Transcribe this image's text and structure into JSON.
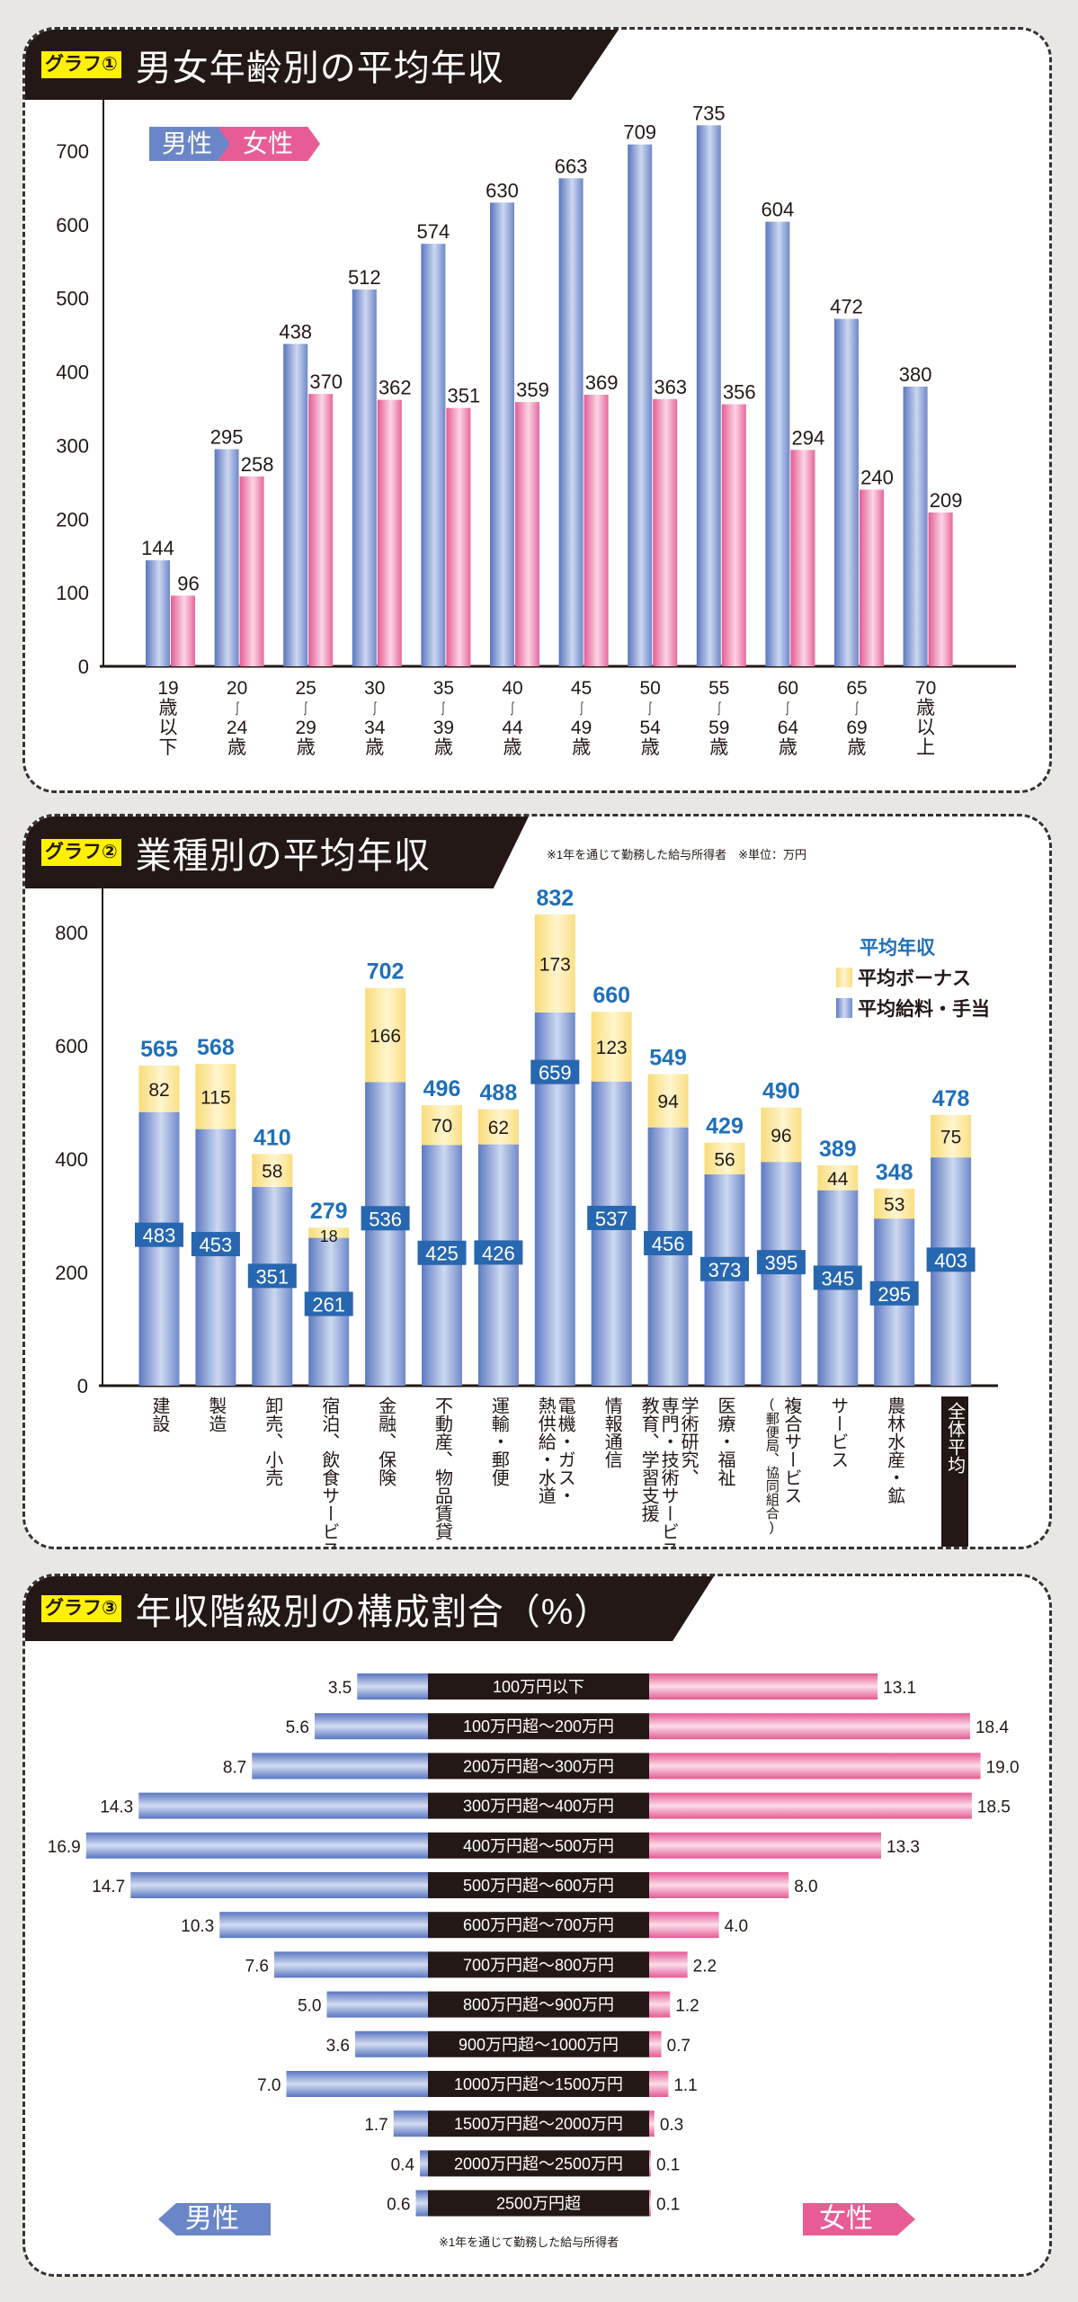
{
  "colors": {
    "male": "#6b86c8",
    "female": "#e85c95",
    "bonus": "#fbe48c",
    "salary": "#6b86c8",
    "value_blue": "#1f6fb8",
    "title_bg": "#231815",
    "badge": "#fff100"
  },
  "chart_data": [
    {
      "type": "bar",
      "badge": "グラフ①",
      "title": "男女年齢別の平均年収",
      "xlabel": "",
      "ylabel": "",
      "ylim": [
        0,
        750
      ],
      "yticks": [
        "0",
        "100",
        "200",
        "300",
        "400",
        "500",
        "600",
        "700"
      ],
      "legend": {
        "male": "男性",
        "female": "女性",
        "placement": "top-left"
      },
      "categories": [
        "19歳以下",
        "20～24歳",
        "25～29歳",
        "30～34歳",
        "35～39歳",
        "40～44歳",
        "45～49歳",
        "50～54歳",
        "55～59歳",
        "60～64歳",
        "65～69歳",
        "70歳以上"
      ],
      "category_lines": [
        [
          "19",
          "歳",
          "以",
          "下"
        ],
        [
          "20",
          "～",
          "24",
          "歳"
        ],
        [
          "25",
          "～",
          "29",
          "歳"
        ],
        [
          "30",
          "～",
          "34",
          "歳"
        ],
        [
          "35",
          "～",
          "39",
          "歳"
        ],
        [
          "40",
          "～",
          "44",
          "歳"
        ],
        [
          "45",
          "～",
          "49",
          "歳"
        ],
        [
          "50",
          "～",
          "54",
          "歳"
        ],
        [
          "55",
          "～",
          "59",
          "歳"
        ],
        [
          "60",
          "～",
          "64",
          "歳"
        ],
        [
          "65",
          "～",
          "69",
          "歳"
        ],
        [
          "70",
          "歳",
          "以",
          "上"
        ]
      ],
      "series": [
        {
          "name": "男性",
          "values": [
            144,
            295,
            438,
            512,
            574,
            630,
            663,
            709,
            735,
            604,
            472,
            380
          ]
        },
        {
          "name": "女性",
          "values": [
            96,
            258,
            370,
            362,
            351,
            359,
            369,
            363,
            356,
            294,
            240,
            209
          ]
        }
      ]
    },
    {
      "type": "bar",
      "stacked": true,
      "badge": "グラフ②",
      "title": "業種別の平均年収",
      "note": "※1年を通じて勤務した給与所得者　※単位：万円",
      "ylim": [
        0,
        850
      ],
      "yticks": [
        "0",
        "200",
        "400",
        "600",
        "800"
      ],
      "legend": {
        "title": "平均年収",
        "bonus": "平均ボーナス",
        "salary": "平均給料・手当",
        "placement": "top-right"
      },
      "categories": [
        "建設",
        "製造",
        "卸売、小売",
        "宿泊、飲食サービス",
        "金融、保険",
        "不動産、物品賃貸",
        "運輸・郵便",
        "電機・ガス・熱供給・水道",
        "情報通信",
        "学術研究、専門・技術サービス、教育、学習支援",
        "医療・福祉",
        "複合サービス（郵便局、協同組合）",
        "サービス",
        "農林水産・鉱",
        "全体平均"
      ],
      "category_columns": [
        [
          "建設"
        ],
        [
          "製造"
        ],
        [
          "卸売、小売"
        ],
        [
          "宿泊、飲食サービス"
        ],
        [
          "金融、保険"
        ],
        [
          "不動産、物品賃貸"
        ],
        [
          "運輸・郵便"
        ],
        [
          "電機・ガス・",
          "熱供給・水道"
        ],
        [
          "情報通信"
        ],
        [
          "学術研究、",
          "専門・技術サービス、",
          "教育、学習支援"
        ],
        [
          "医療・福祉"
        ],
        [
          "複合サービス",
          "(郵便局、協同組合)"
        ],
        [
          "サービス"
        ],
        [
          "農林水産・鉱"
        ],
        [
          "全体平均"
        ]
      ],
      "series": [
        {
          "name": "平均給料・手当",
          "values": [
            483,
            453,
            351,
            261,
            536,
            425,
            426,
            659,
            537,
            456,
            373,
            395,
            345,
            295,
            403
          ]
        },
        {
          "name": "平均ボーナス",
          "values": [
            82,
            115,
            58,
            18,
            166,
            70,
            62,
            173,
            123,
            94,
            56,
            96,
            44,
            53,
            75
          ]
        }
      ],
      "totals": [
        565,
        568,
        410,
        279,
        702,
        496,
        488,
        832,
        660,
        549,
        429,
        490,
        389,
        348,
        478
      ]
    },
    {
      "type": "bar",
      "orientation": "horizontal-butterfly",
      "badge": "グラフ③",
      "title": "年収階級別の構成割合（%）",
      "note": "※1年を通じて勤務した給与所得者",
      "legend": {
        "male": "男性",
        "female": "女性",
        "placement": "bottom"
      },
      "categories": [
        "100万円以下",
        "100万円超～200万円",
        "200万円超～300万円",
        "300万円超～400万円",
        "400万円超～500万円",
        "500万円超～600万円",
        "600万円超～700万円",
        "700万円超～800万円",
        "800万円超～900万円",
        "900万円超～1000万円",
        "1000万円超～1500万円",
        "1500万円超～2000万円",
        "2000万円超～2500万円",
        "2500万円超"
      ],
      "series": [
        {
          "name": "男性",
          "values": [
            3.5,
            5.6,
            8.7,
            14.3,
            16.9,
            14.7,
            10.3,
            7.6,
            5.0,
            3.6,
            7.0,
            1.7,
            0.4,
            0.6
          ],
          "labels": [
            "3.5",
            "5.6",
            "8.7",
            "14.3",
            "16.9",
            "14.7",
            "10.3",
            "7.6",
            "5.0",
            "3.6",
            "7.0",
            "1.7",
            "0.4",
            "0.6"
          ]
        },
        {
          "name": "女性",
          "values": [
            13.1,
            18.4,
            19.0,
            18.5,
            13.3,
            8.0,
            4.0,
            2.2,
            1.2,
            0.7,
            1.1,
            0.3,
            0.1,
            0.1
          ],
          "labels": [
            "13.1",
            "18.4",
            "19.0",
            "18.5",
            "13.3",
            "8.0",
            "4.0",
            "2.2",
            "1.2",
            "0.7",
            "1.1",
            "0.3",
            "0.1",
            "0.1"
          ]
        }
      ]
    }
  ]
}
